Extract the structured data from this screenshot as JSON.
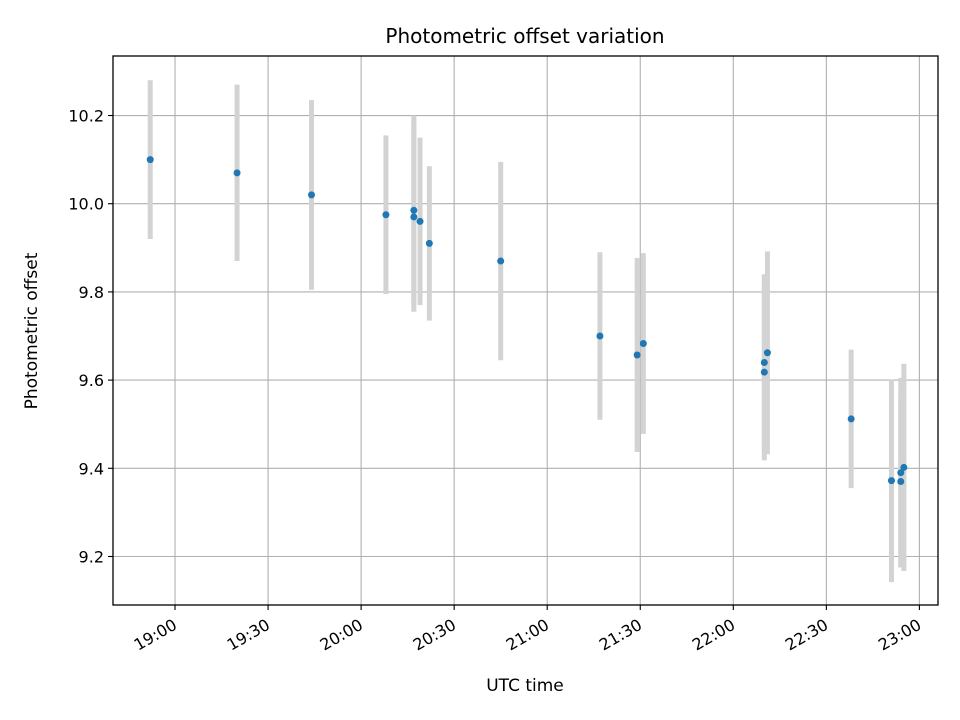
{
  "chart_data": {
    "type": "scatter",
    "title": "Photometric offset variation",
    "xlabel": "UTC time",
    "ylabel": "Photometric offset",
    "xlim": [
      "18:40",
      "23:06"
    ],
    "ylim": [
      9.09,
      10.335
    ],
    "grid": true,
    "x_ticks": [
      "19:00",
      "19:30",
      "20:00",
      "20:30",
      "21:00",
      "21:30",
      "22:00",
      "22:30",
      "23:00"
    ],
    "y_ticks": [
      9.2,
      9.4,
      9.6,
      9.8,
      10.0,
      10.2
    ],
    "y_tick_labels": [
      "9.2",
      "9.4",
      "9.6",
      "9.8",
      "10.0",
      "10.2"
    ],
    "point_color": "#1f77b4",
    "errorbar_color": "#d3d3d3",
    "points": [
      {
        "x": "18:52",
        "y": 10.1,
        "err": 0.18
      },
      {
        "x": "19:20",
        "y": 10.07,
        "err": 0.2
      },
      {
        "x": "19:44",
        "y": 10.02,
        "err": 0.215
      },
      {
        "x": "20:08",
        "y": 9.975,
        "err": 0.18
      },
      {
        "x": "20:17",
        "y": 9.985,
        "err": 0.215
      },
      {
        "x": "20:17",
        "y": 9.97,
        "err": 0.215
      },
      {
        "x": "20:19",
        "y": 9.96,
        "err": 0.19
      },
      {
        "x": "20:22",
        "y": 9.91,
        "err": 0.175
      },
      {
        "x": "20:45",
        "y": 9.87,
        "err": 0.225
      },
      {
        "x": "21:17",
        "y": 9.7,
        "err": 0.19
      },
      {
        "x": "21:29",
        "y": 9.657,
        "err": 0.22
      },
      {
        "x": "21:31",
        "y": 9.683,
        "err": 0.205
      },
      {
        "x": "22:10",
        "y": 9.618,
        "err": 0.2
      },
      {
        "x": "22:10",
        "y": 9.64,
        "err": 0.2
      },
      {
        "x": "22:11",
        "y": 9.662,
        "err": 0.23
      },
      {
        "x": "22:38",
        "y": 9.512,
        "err": 0.157
      },
      {
        "x": "22:51",
        "y": 9.372,
        "err": 0.23
      },
      {
        "x": "22:54",
        "y": 9.37,
        "err": 0.195
      },
      {
        "x": "22:54",
        "y": 9.39,
        "err": 0.215
      },
      {
        "x": "22:55",
        "y": 9.402,
        "err": 0.235
      }
    ]
  }
}
